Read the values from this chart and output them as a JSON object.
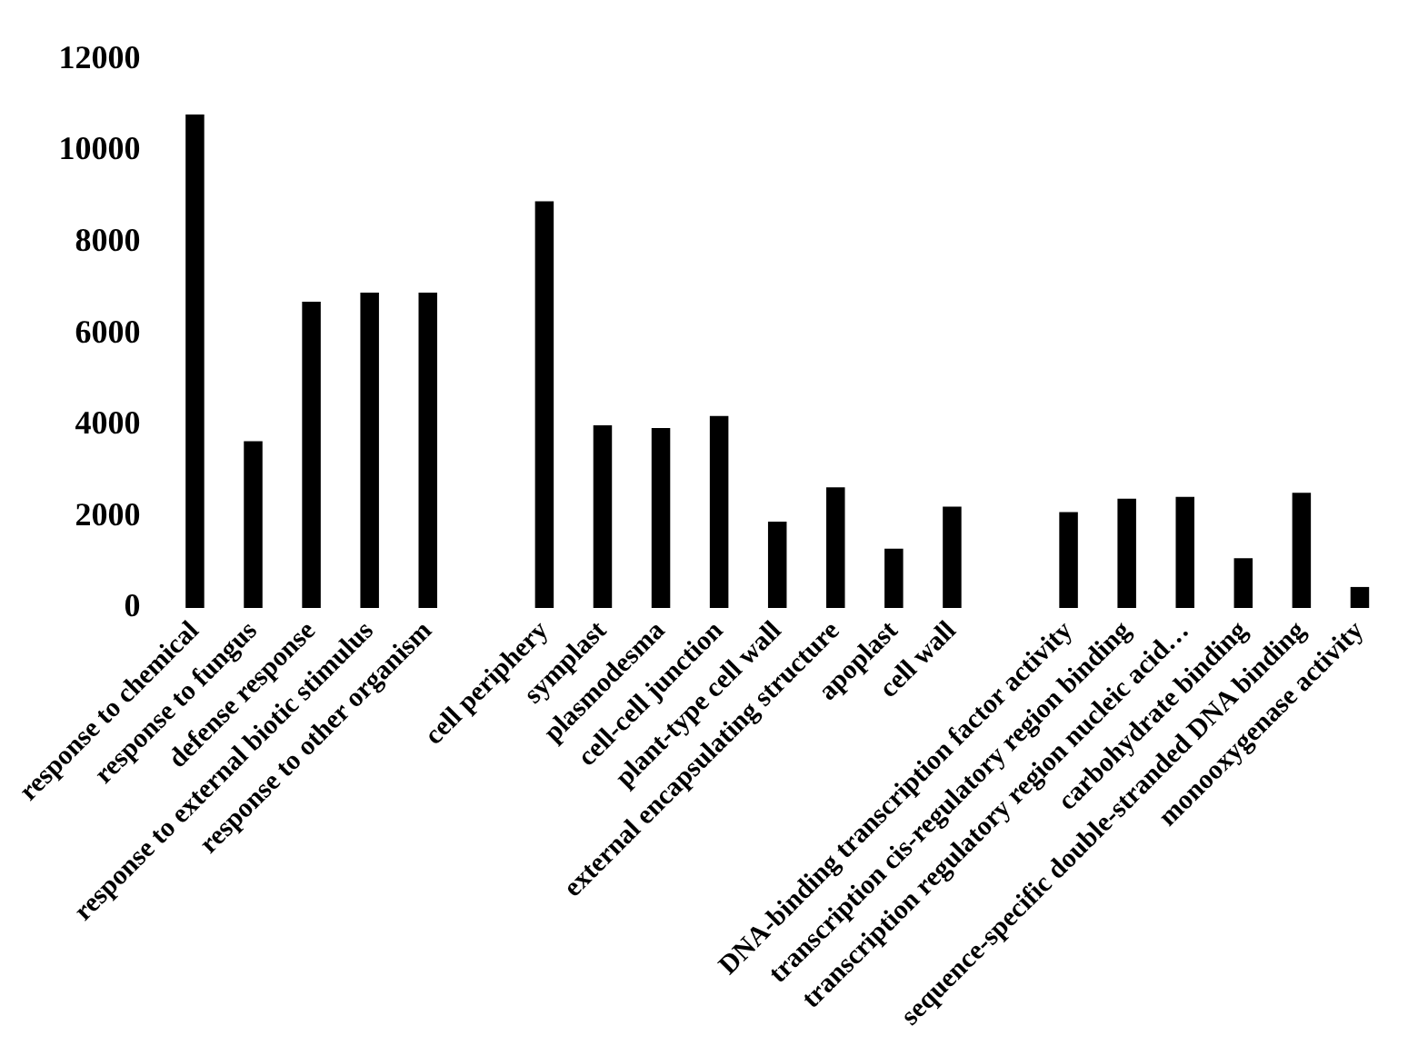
{
  "chart_data": {
    "type": "bar",
    "categories": [
      "response to chemical",
      "response to fungus",
      "defense response",
      "response to external biotic stimulus",
      "response to other organism",
      null,
      "cell periphery",
      "symplast",
      "plasmodesma",
      "cell-cell junction",
      "plant-type cell wall",
      "external encapsulating structure",
      "apoplast",
      "cell wall",
      null,
      "DNA-binding transcription factor activity",
      "transcription cis-regulatory region binding",
      "transcription regulatory region nucleic acid…",
      "carbohydrate binding",
      "sequence-specific double-stranded DNA binding",
      "monooxygenase activity"
    ],
    "values": [
      10800,
      3650,
      6700,
      6900,
      6900,
      null,
      8900,
      4000,
      3940,
      4200,
      1890,
      2640,
      1300,
      2220,
      null,
      2100,
      2390,
      2430,
      1090,
      2520,
      460
    ],
    "color": "#000000",
    "ylim": [
      0,
      12000
    ],
    "yticks": [
      0,
      2000,
      4000,
      6000,
      8000,
      10000,
      12000
    ],
    "grid": false
  }
}
